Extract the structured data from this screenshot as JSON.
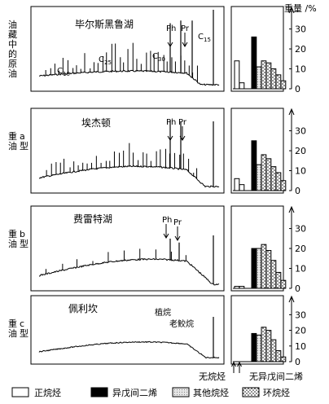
{
  "chart_data": {
    "type": "bar",
    "title": "",
    "ylabel": "重量 /%",
    "ylim": [
      0,
      38
    ],
    "yticks": [
      0,
      10,
      20,
      30
    ],
    "legend": {
      "placement": "bottom",
      "items": [
        {
          "label": "正烷烃",
          "pattern": "white"
        },
        {
          "label": "异戊间二烯",
          "pattern": "black"
        },
        {
          "label": "其他烷烃",
          "pattern": "gray"
        },
        {
          "label": "环烷烃",
          "pattern": "dots"
        }
      ]
    },
    "bottom_labels": {
      "left": "无烷烃",
      "right": "无异戊间二烯"
    },
    "panels": [
      {
        "sample_label": "油藏中的原油",
        "chromatogram_title": "毕尔斯黑鲁湖",
        "chromatogram_peak_labels": [
          "C10",
          "C25",
          "C30",
          "Ph",
          "Pr",
          "C15"
        ],
        "bars": [
          {
            "category": "正烷烃",
            "value": 14
          },
          {
            "category": "正烷烃",
            "value": 3
          },
          {
            "category": "异戊间二烯",
            "value": 26
          },
          {
            "category": "其他烷烃",
            "value": 11
          },
          {
            "category": "环烷烃",
            "value": 14
          },
          {
            "category": "环烷烃",
            "value": 13
          },
          {
            "category": "环烷烃",
            "value": 10
          },
          {
            "category": "环烷烃",
            "value": 7
          },
          {
            "category": "环烷烃",
            "value": 4
          }
        ]
      },
      {
        "sample_label": "重油 a型",
        "chromatogram_title": "埃杰顿",
        "chromatogram_peak_labels": [
          "Ph",
          "Pr"
        ],
        "bars": [
          {
            "category": "正烷烃",
            "value": 6
          },
          {
            "category": "正烷烃",
            "value": 3
          },
          {
            "category": "异戊间二烯",
            "value": 25
          },
          {
            "category": "其他烷烃",
            "value": 13
          },
          {
            "category": "环烷烃",
            "value": 18
          },
          {
            "category": "环烷烃",
            "value": 16
          },
          {
            "category": "环烷烃",
            "value": 12
          },
          {
            "category": "环烷烃",
            "value": 9
          },
          {
            "category": "环烷烃",
            "value": 5
          }
        ]
      },
      {
        "sample_label": "重油 b型",
        "chromatogram_title": "费雷特湖",
        "chromatogram_peak_labels": [
          "Ph",
          "Pr"
        ],
        "bars": [
          {
            "category": "正烷烃",
            "value": 1
          },
          {
            "category": "正烷烃",
            "value": 1
          },
          {
            "category": "异戊间二烯",
            "value": 20
          },
          {
            "category": "其他烷烃",
            "value": 20
          },
          {
            "category": "环烷烃",
            "value": 22
          },
          {
            "category": "环烷烃",
            "value": 19
          },
          {
            "category": "环烷烃",
            "value": 14
          },
          {
            "category": "环烷烃",
            "value": 8
          },
          {
            "category": "环烷烃",
            "value": 4
          }
        ]
      },
      {
        "sample_label": "重油 c型",
        "chromatogram_title": "佩利坎",
        "chromatogram_peak_labels": [
          "植烷",
          "老鲛烷"
        ],
        "bars": [
          {
            "category": "正烷烃",
            "value": 0
          },
          {
            "category": "正烷烃",
            "value": 0
          },
          {
            "category": "异戊间二烯",
            "value": 18
          },
          {
            "category": "其他烷烃",
            "value": 17
          },
          {
            "category": "环烷烃",
            "value": 22
          },
          {
            "category": "环烷烃",
            "value": 20
          },
          {
            "category": "环烷烃",
            "value": 14
          },
          {
            "category": "环烷烃",
            "value": 7
          },
          {
            "category": "环烷烃",
            "value": 3
          }
        ]
      }
    ]
  }
}
